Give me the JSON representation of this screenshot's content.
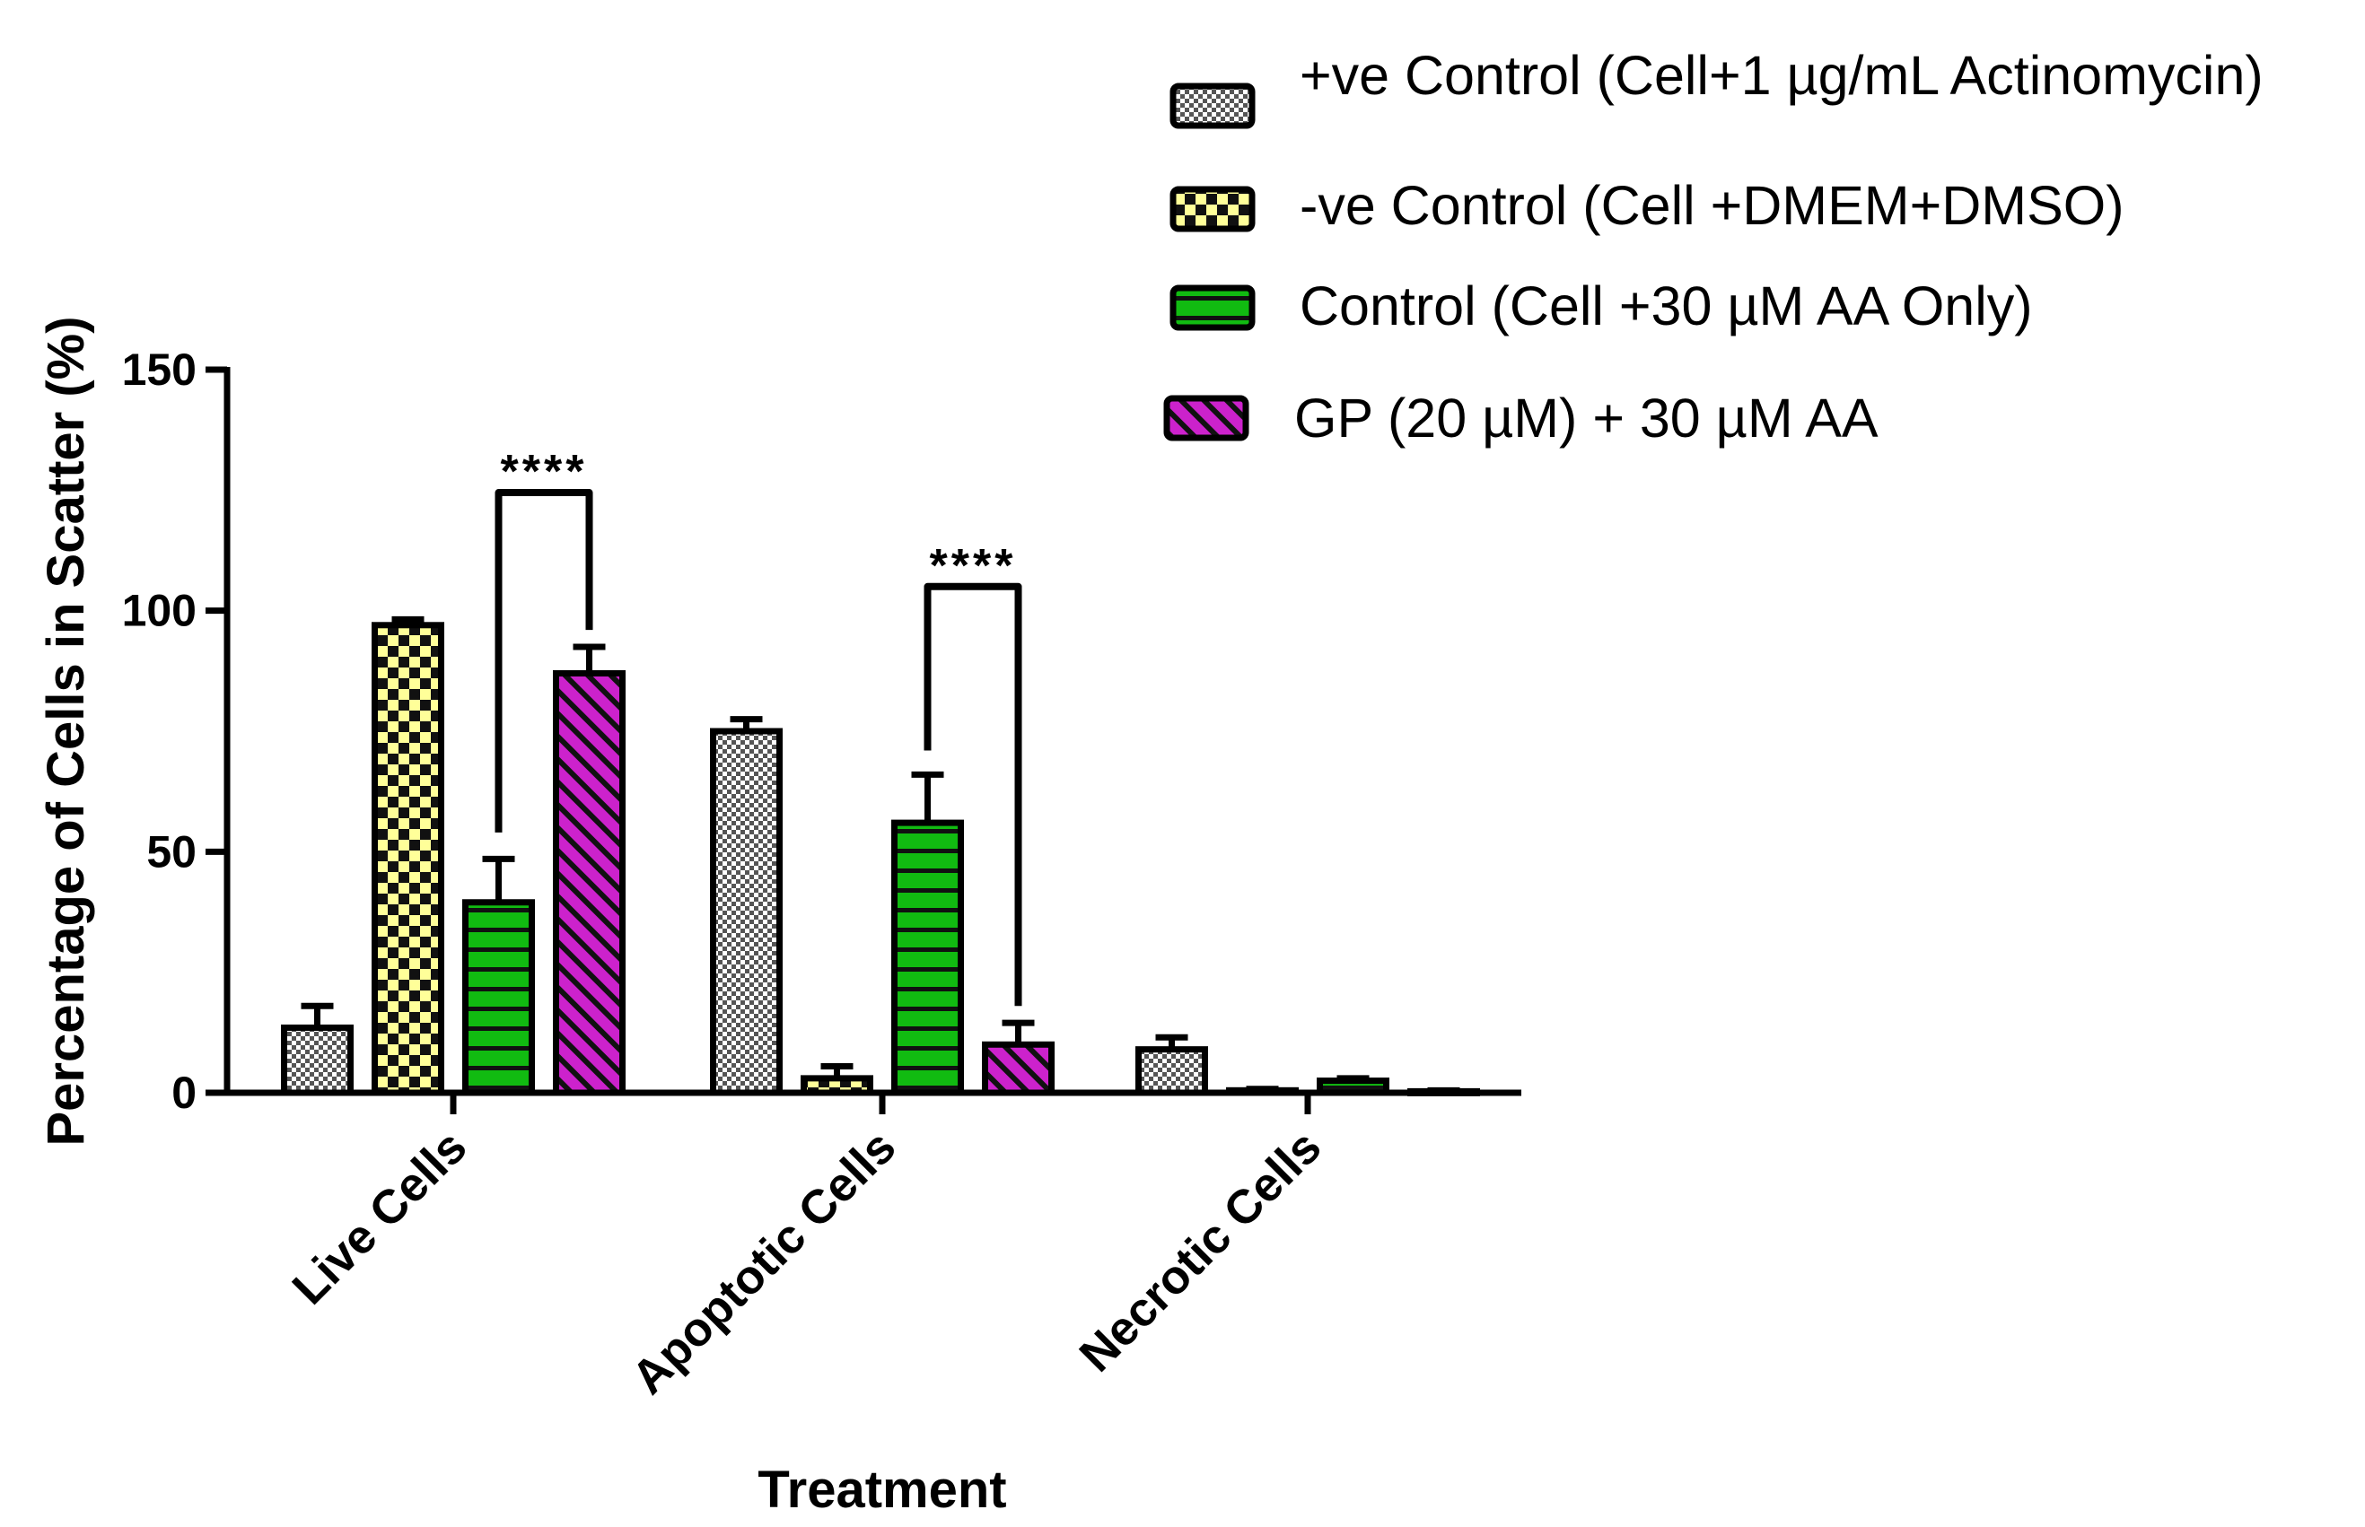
{
  "chart_data": {
    "type": "bar",
    "ylabel": "Percentage of Cells in Scatter (%)",
    "xlabel": "Treatment",
    "ylim": [
      0,
      150
    ],
    "yticks": [
      0,
      50,
      100,
      150
    ],
    "categories": [
      "Live Cells",
      "Apoptotic Cells",
      "Necrotic Cells"
    ],
    "series": [
      {
        "name": "+ve Control (Cell+1 µg/mL Actinomycin)",
        "values": [
          13.5,
          75,
          9
        ],
        "errors": [
          4.5,
          2.5,
          2.5
        ],
        "color": "#ffffff",
        "pattern": "checker-gray"
      },
      {
        "name": "-ve Control (Cell +DMEM+DMSO)",
        "values": [
          97,
          3,
          0.5
        ],
        "errors": [
          1.2,
          2.5,
          0.3
        ],
        "color": "#ffff99",
        "pattern": "checker-yellow"
      },
      {
        "name": "Control (Cell +30 µM AA Only)",
        "values": [
          39.5,
          56,
          2.5
        ],
        "errors": [
          9,
          10,
          0.5
        ],
        "color": "#11bb11",
        "pattern": "horizontal-lines"
      },
      {
        "name": "GP (20 µM) + 30 µM AA",
        "values": [
          87,
          10,
          0.3
        ],
        "errors": [
          5.5,
          4.5,
          0.2
        ],
        "color": "#cc22cc",
        "pattern": "diagonal-lines"
      }
    ],
    "significance": [
      {
        "category_index": 0,
        "from_series": 2,
        "to_series": 3,
        "label": "****",
        "bracket_y": 124.5,
        "from_y": 54,
        "to_y": 96
      },
      {
        "category_index": 1,
        "from_series": 2,
        "to_series": 3,
        "label": "****",
        "bracket_y": 105,
        "from_y": 71,
        "to_y": 18
      }
    ],
    "legend_position": "top-right"
  }
}
